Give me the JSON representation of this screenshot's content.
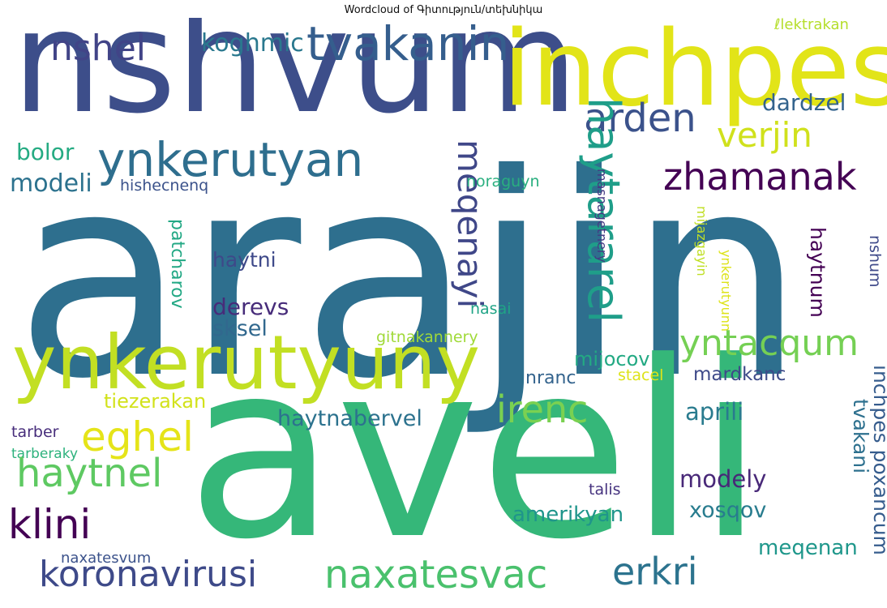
{
  "title": "Wordcloud of Գիտություն/տեխնիկա",
  "words": [
    {
      "text": "arajin",
      "color": "#2e6f8e"
    },
    {
      "text": "aveli",
      "color": "#35b779"
    },
    {
      "text": "nshvum",
      "color": "#3d4e8a"
    },
    {
      "text": "inchpes",
      "color": "#e2e418"
    },
    {
      "text": "ynkerutyuny",
      "color": "#c2df23"
    },
    {
      "text": "tvakanin",
      "color": "#355e8d"
    },
    {
      "text": "ynkerutyan",
      "color": "#2e6e8e"
    },
    {
      "text": "nshel",
      "color": "#414487"
    },
    {
      "text": "koghmic",
      "color": "#2a788e"
    },
    {
      "text": "ℓlektrakan",
      "color": "#b5de2b"
    },
    {
      "text": "arden",
      "color": "#3b528b"
    },
    {
      "text": "verjin",
      "color": "#d0e11c"
    },
    {
      "text": "dardzel",
      "color": "#33638d"
    },
    {
      "text": "zhamanak",
      "color": "#440154"
    },
    {
      "text": "haytararel",
      "color": "#1f9e89"
    },
    {
      "text": "meqenayi",
      "color": "#3f4788"
    },
    {
      "text": "bolor",
      "color": "#25ab82"
    },
    {
      "text": "modeli",
      "color": "#2c728e"
    },
    {
      "text": "hishecnenq",
      "color": "#3b528b"
    },
    {
      "text": "noraguyn",
      "color": "#29af7f"
    },
    {
      "text": "masnagetnery",
      "color": "#443983"
    },
    {
      "text": "patcharov",
      "color": "#22a884"
    },
    {
      "text": "haytni",
      "color": "#3e4989"
    },
    {
      "text": "derevs",
      "color": "#472c7a"
    },
    {
      "text": "sksel",
      "color": "#31688e"
    },
    {
      "text": "nasai",
      "color": "#20a486"
    },
    {
      "text": "gitnakannery",
      "color": "#a0da39"
    },
    {
      "text": "mijazgayin",
      "color": "#c0df25"
    },
    {
      "text": "ynkerutyunn",
      "color": "#dde318"
    },
    {
      "text": "haytnum",
      "color": "#440154"
    },
    {
      "text": "nshum",
      "color": "#3e4989"
    },
    {
      "text": "yntacqum",
      "color": "#75d054"
    },
    {
      "text": "irenc",
      "color": "#7ad151"
    },
    {
      "text": "mijocov",
      "color": "#23a983"
    },
    {
      "text": "nranc",
      "color": "#33638d"
    },
    {
      "text": "stacel",
      "color": "#dde318"
    },
    {
      "text": "mardkanc",
      "color": "#3e4a89"
    },
    {
      "text": "tiezerakan",
      "color": "#d2e21b"
    },
    {
      "text": "eghel",
      "color": "#e5e419"
    },
    {
      "text": "haytnabervel",
      "color": "#2c728e"
    },
    {
      "text": "aprili",
      "color": "#297b8e"
    },
    {
      "text": "tvakani",
      "color": "#2d708e"
    },
    {
      "text": "inchpes poxancum",
      "color": "#365c8d"
    },
    {
      "text": "tarber",
      "color": "#472d7b"
    },
    {
      "text": "tarberaky",
      "color": "#2db27d"
    },
    {
      "text": "haytnel",
      "color": "#5ec962"
    },
    {
      "text": "klini",
      "color": "#440154"
    },
    {
      "text": "modely",
      "color": "#482878"
    },
    {
      "text": "talis",
      "color": "#46337f"
    },
    {
      "text": "amerikyan",
      "color": "#1f958b"
    },
    {
      "text": "xosqov",
      "color": "#287c8e"
    },
    {
      "text": "naxatesvum",
      "color": "#3b528b"
    },
    {
      "text": "koronavirusi",
      "color": "#3e4a89"
    },
    {
      "text": "naxatesvac",
      "color": "#4ac16d"
    },
    {
      "text": "erkri",
      "color": "#2c738e"
    },
    {
      "text": "meqenan",
      "color": "#1f978b"
    }
  ]
}
